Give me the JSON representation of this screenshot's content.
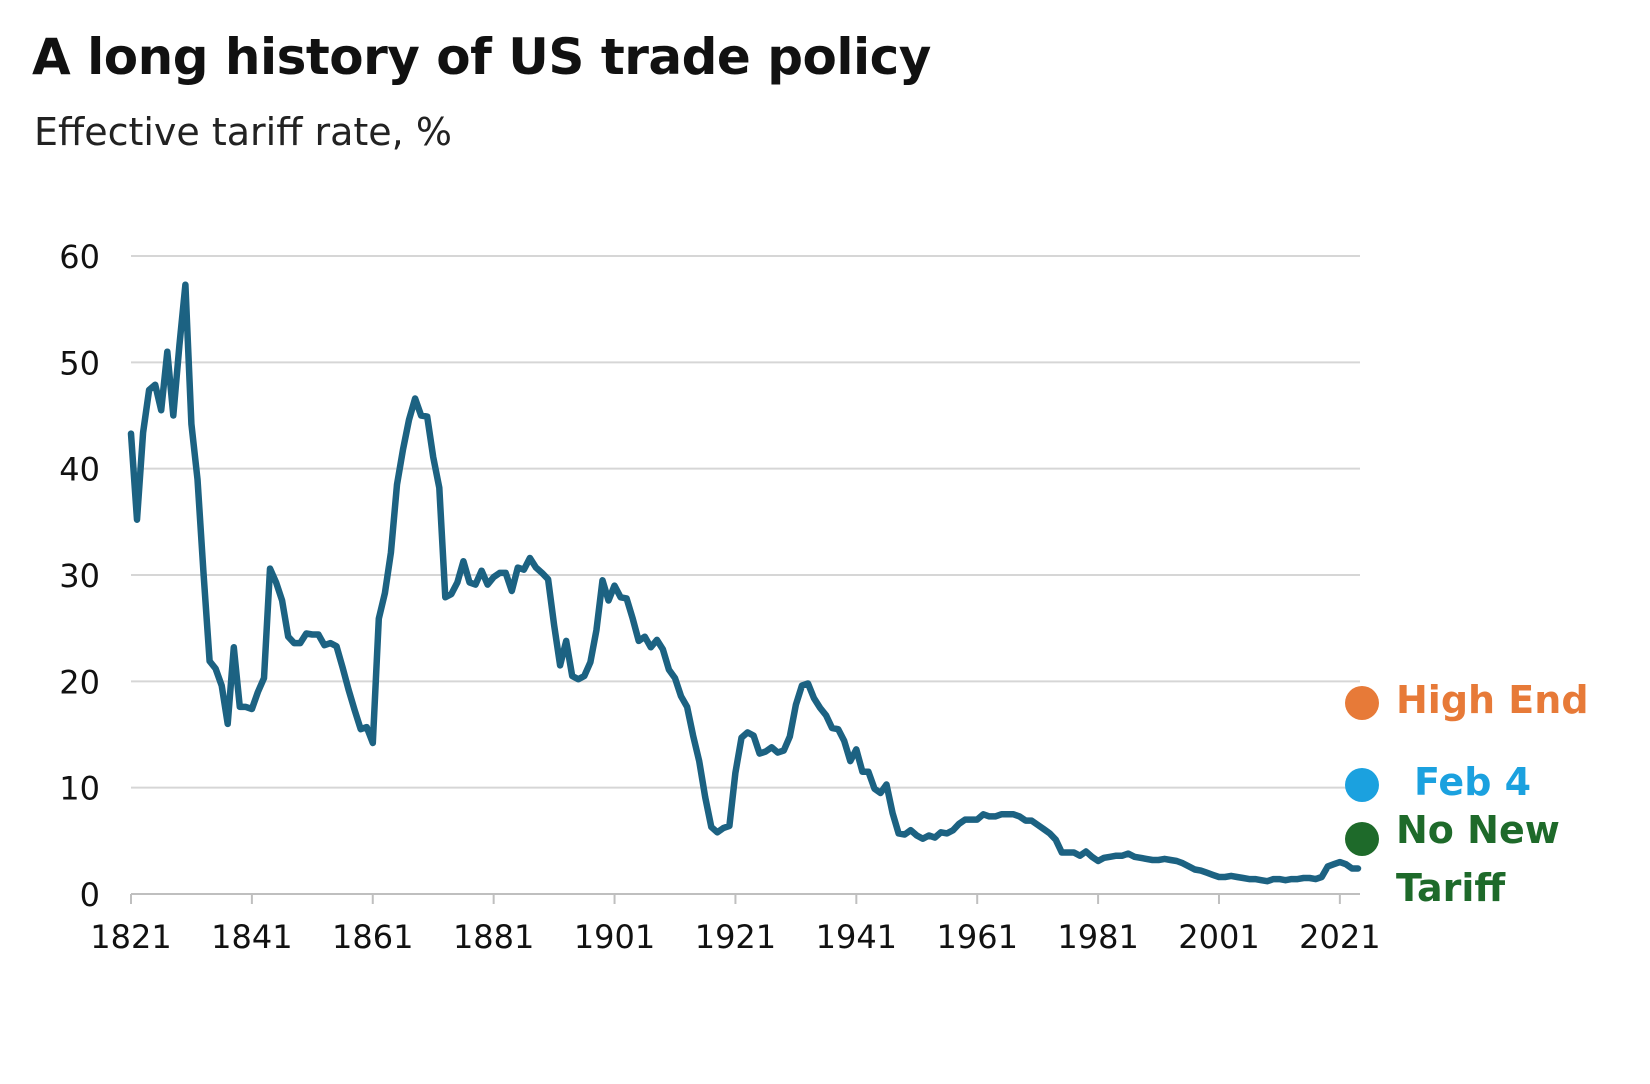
{
  "header": {
    "title": "A long history of US trade policy",
    "subtitle": "Effective tariff rate, %"
  },
  "chart_data": {
    "type": "line",
    "title": "A long history of US trade policy",
    "subtitle": "Effective tariff rate, %",
    "xlabel": "",
    "ylabel": "",
    "xlim": [
      1821,
      2024
    ],
    "ylim": [
      0,
      60
    ],
    "grid": true,
    "x_ticks": [
      "1821",
      "1841",
      "1861",
      "1881",
      "1901",
      "1921",
      "1941",
      "1961",
      "1981",
      "2001",
      "2021"
    ],
    "y_ticks": [
      "0",
      "10",
      "20",
      "30",
      "40",
      "50",
      "60"
    ],
    "line_color": "#1c6282",
    "series": [
      {
        "name": "Effective tariff rate",
        "x": [
          1821,
          1822,
          1823,
          1824,
          1825,
          1826,
          1827,
          1828,
          1829,
          1830,
          1831,
          1832,
          1833,
          1834,
          1835,
          1836,
          1837,
          1838,
          1839,
          1840,
          1841,
          1842,
          1843,
          1844,
          1845,
          1846,
          1847,
          1848,
          1849,
          1850,
          1851,
          1852,
          1853,
          1854,
          1855,
          1856,
          1857,
          1858,
          1859,
          1860,
          1861,
          1862,
          1863,
          1864,
          1865,
          1866,
          1867,
          1868,
          1869,
          1870,
          1871,
          1872,
          1873,
          1874,
          1875,
          1876,
          1877,
          1878,
          1879,
          1880,
          1881,
          1882,
          1883,
          1884,
          1885,
          1886,
          1887,
          1888,
          1889,
          1890,
          1891,
          1892,
          1893,
          1894,
          1895,
          1896,
          1897,
          1898,
          1899,
          1900,
          1901,
          1902,
          1903,
          1904,
          1905,
          1906,
          1907,
          1908,
          1909,
          1910,
          1911,
          1912,
          1913,
          1914,
          1915,
          1916,
          1917,
          1918,
          1919,
          1920,
          1921,
          1922,
          1923,
          1924,
          1925,
          1926,
          1927,
          1928,
          1929,
          1930,
          1931,
          1932,
          1933,
          1934,
          1935,
          1936,
          1937,
          1938,
          1939,
          1940,
          1941,
          1942,
          1943,
          1944,
          1945,
          1946,
          1947,
          1948,
          1949,
          1950,
          1951,
          1952,
          1953,
          1954,
          1955,
          1956,
          1957,
          1958,
          1959,
          1960,
          1961,
          1962,
          1963,
          1964,
          1965,
          1966,
          1967,
          1968,
          1969,
          1970,
          1971,
          1972,
          1973,
          1974,
          1975,
          1976,
          1977,
          1978,
          1979,
          1980,
          1981,
          1982,
          1983,
          1984,
          1985,
          1986,
          1987,
          1988,
          1989,
          1990,
          1991,
          1992,
          1993,
          1994,
          1995,
          1996,
          1997,
          1998,
          1999,
          2000,
          2001,
          2002,
          2003,
          2004,
          2005,
          2006,
          2007,
          2008,
          2009,
          2010,
          2011,
          2012,
          2013,
          2014,
          2015,
          2016,
          2017,
          2018,
          2019,
          2020,
          2021,
          2022,
          2023,
          2024
        ],
        "values": [
          43.3,
          35.2,
          43.4,
          47.4,
          47.9,
          45.5,
          51.0,
          45.0,
          51.6,
          57.3,
          44.2,
          39.0,
          30.2,
          21.9,
          21.2,
          19.6,
          16.0,
          23.2,
          17.6,
          17.6,
          17.4,
          19.0,
          20.3,
          30.6,
          29.3,
          27.6,
          24.2,
          23.6,
          23.6,
          24.5,
          24.4,
          24.4,
          23.4,
          23.6,
          23.3,
          21.3,
          19.2,
          17.3,
          15.5,
          15.7,
          14.2,
          25.9,
          28.3,
          32.1,
          38.5,
          41.8,
          44.6,
          46.6,
          45.0,
          44.9,
          41.1,
          38.2,
          27.9,
          28.2,
          29.3,
          31.3,
          29.3,
          29.1,
          30.4,
          29.1,
          29.8,
          30.2,
          30.2,
          28.5,
          30.7,
          30.5,
          31.6,
          30.7,
          30.2,
          29.6,
          25.3,
          21.5,
          23.8,
          20.5,
          20.2,
          20.5,
          21.8,
          24.8,
          29.5,
          27.6,
          29.0,
          27.9,
          27.8,
          25.9,
          23.8,
          24.2,
          23.2,
          23.9,
          23.0,
          21.1,
          20.3,
          18.6,
          17.6,
          14.9,
          12.5,
          9.1,
          6.3,
          5.8,
          6.2,
          6.4,
          11.4,
          14.7,
          15.2,
          14.9,
          13.2,
          13.4,
          13.8,
          13.3,
          13.5,
          14.8,
          17.8,
          19.6,
          19.8,
          18.4,
          17.5,
          16.8,
          15.6,
          15.5,
          14.4,
          12.5,
          13.6,
          11.5,
          11.5,
          9.9,
          9.5,
          10.3,
          7.6,
          5.7,
          5.6,
          6.0,
          5.5,
          5.2,
          5.5,
          5.3,
          5.8,
          5.7,
          6.0,
          6.6,
          7.0,
          7.0,
          7.0,
          7.5,
          7.3,
          7.3,
          7.5,
          7.5,
          7.5,
          7.3,
          6.9,
          6.9,
          6.5,
          6.1,
          5.7,
          5.1,
          3.9,
          3.9,
          3.9,
          3.6,
          4.0,
          3.5,
          3.1,
          3.4,
          3.5,
          3.6,
          3.6,
          3.8,
          3.5,
          3.4,
          3.3,
          3.2,
          3.2,
          3.3,
          3.2,
          3.1,
          2.9,
          2.6,
          2.3,
          2.2,
          2.0,
          1.8,
          1.6,
          1.6,
          1.7,
          1.6,
          1.5,
          1.4,
          1.4,
          1.3,
          1.2,
          1.4,
          1.4,
          1.3,
          1.4,
          1.4,
          1.5,
          1.5,
          1.4,
          1.6,
          2.6,
          2.8,
          3.0,
          2.8,
          2.4,
          2.4
        ]
      }
    ],
    "legend": [
      {
        "key": "high",
        "label": "High End",
        "lines": [
          "High End"
        ],
        "color": "#e77a38"
      },
      {
        "key": "feb4",
        "label": "Feb 4",
        "lines": [
          "Feb 4"
        ],
        "color": "#1ba1df"
      },
      {
        "key": "none",
        "label": "No New Tariff",
        "lines": [
          "No New",
          "Tariff"
        ],
        "color": "#1e6a2a"
      }
    ]
  }
}
